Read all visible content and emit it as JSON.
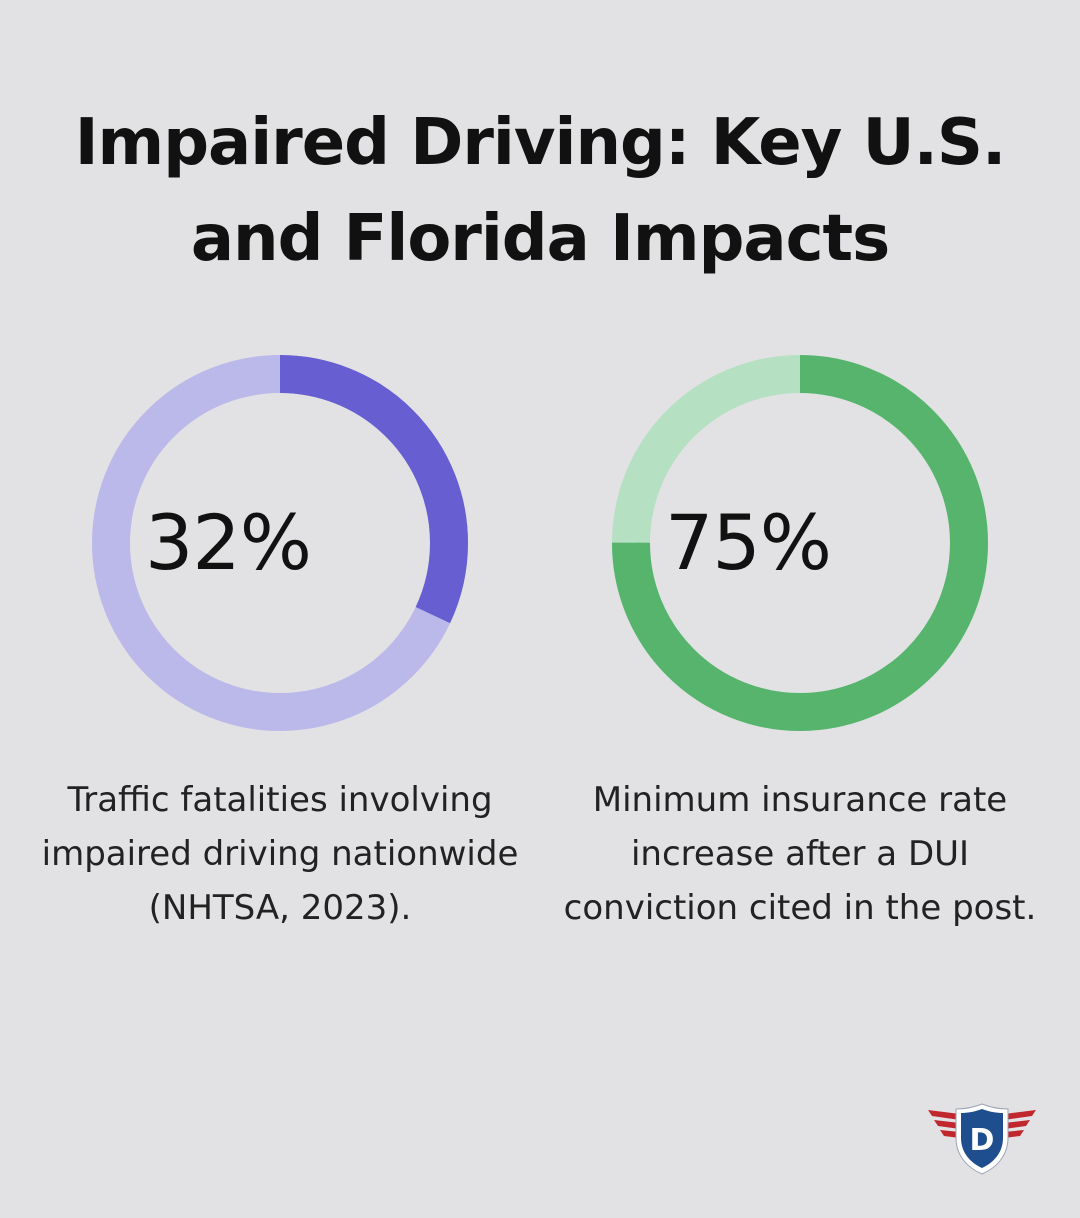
{
  "header": {
    "title_line1": "Impaired Driving: Key U.S.",
    "title_line2": "and Florida Impacts"
  },
  "chart_data": [
    {
      "type": "pie",
      "value": 32,
      "label": "32%",
      "caption": "Traffic fatalities involving impaired driving nationwide (NHTSA, 2023).",
      "colors": {
        "filled": "#665ed1",
        "remaining": "#bbb8ea"
      }
    },
    {
      "type": "pie",
      "value": 75,
      "label": "75%",
      "caption": "Minimum insurance rate increase after a DUI conviction cited in the post.",
      "colors": {
        "filled": "#56b46d",
        "remaining": "#b5e0c2"
      }
    }
  ],
  "logo": {
    "letter": "D",
    "colors": {
      "shield": "#1f4e8f",
      "wings": "#c0282e"
    }
  }
}
